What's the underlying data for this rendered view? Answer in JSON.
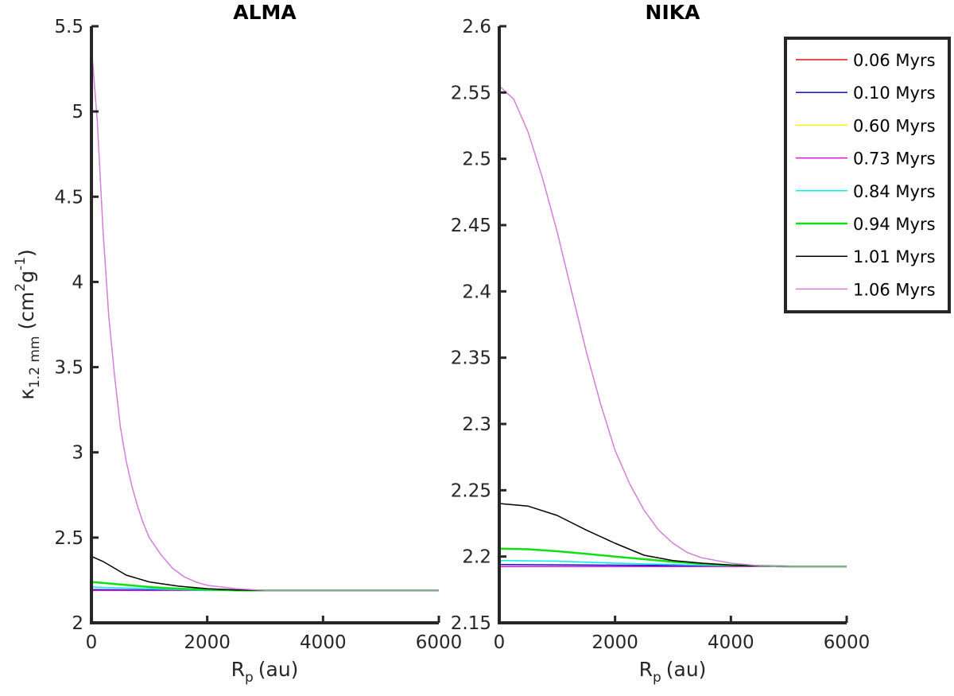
{
  "chart_data": [
    {
      "type": "line",
      "title": "ALMA",
      "xlabel": "R_p (au)",
      "xlabel_main": "R",
      "xlabel_sub": "p",
      "xlabel_unit": "(au)",
      "ylabel": "κ_1.2 mm (cm^2 g^-1)",
      "ylabel_main": "κ",
      "ylabel_sub": "1.2 mm",
      "ylabel_unit_open": "(cm",
      "ylabel_sup1": "2",
      "ylabel_unit_mid": "g",
      "ylabel_sup2": "-1",
      "ylabel_unit_close": ")",
      "xlim": [
        0,
        6000
      ],
      "ylim": [
        2,
        5.5
      ],
      "xticks": [
        0,
        2000,
        4000,
        6000
      ],
      "xtick_labels": [
        "0",
        "2000",
        "4000",
        "6000"
      ],
      "yticks": [
        2,
        2.5,
        3,
        3.5,
        4,
        4.5,
        5,
        5.5
      ],
      "ytick_labels": [
        "2",
        "2.5",
        "3",
        "3.5",
        "4",
        "4.5",
        "5",
        "5.5"
      ],
      "series": [
        {
          "name": "0.06 Myrs",
          "color": "#e01010",
          "width": 1.5,
          "x": [
            0,
            6000
          ],
          "y": [
            2.19,
            2.19
          ]
        },
        {
          "name": "0.10 Myrs",
          "color": "#1010d0",
          "width": 1.5,
          "x": [
            0,
            1000,
            2000,
            6000
          ],
          "y": [
            2.195,
            2.193,
            2.19,
            2.19
          ]
        },
        {
          "name": "0.60 Myrs",
          "color": "#ffee00",
          "width": 1.5,
          "x": [
            0,
            6000
          ],
          "y": [
            2.19,
            2.19
          ]
        },
        {
          "name": "0.73 Myrs",
          "color": "#e010e0",
          "width": 1.5,
          "x": [
            0,
            6000
          ],
          "y": [
            2.19,
            2.19
          ]
        },
        {
          "name": "0.84 Myrs",
          "color": "#00eeee",
          "width": 1.5,
          "x": [
            0,
            500,
            1000,
            1500,
            2000,
            6000
          ],
          "y": [
            2.21,
            2.205,
            2.2,
            2.195,
            2.19,
            2.19
          ]
        },
        {
          "name": "0.94 Myrs",
          "color": "#10e010",
          "width": 2.5,
          "x": [
            0,
            500,
            1000,
            1500,
            2000,
            2500,
            6000
          ],
          "y": [
            2.24,
            2.225,
            2.21,
            2.2,
            2.195,
            2.19,
            2.19
          ]
        },
        {
          "name": "1.01 Myrs",
          "color": "#000000",
          "width": 1.5,
          "x": [
            0,
            200,
            400,
            600,
            800,
            1000,
            1500,
            2000,
            2500,
            3000,
            6000
          ],
          "y": [
            2.39,
            2.36,
            2.32,
            2.28,
            2.26,
            2.24,
            2.215,
            2.2,
            2.193,
            2.19,
            2.19
          ]
        },
        {
          "name": "1.06 Myrs",
          "color": "#d27fd8",
          "width": 1.5,
          "x": [
            0,
            100,
            200,
            300,
            400,
            500,
            600,
            700,
            800,
            900,
            1000,
            1200,
            1400,
            1600,
            1800,
            2000,
            2500,
            3000,
            6000
          ],
          "y": [
            5.38,
            4.95,
            4.3,
            3.8,
            3.45,
            3.15,
            2.95,
            2.8,
            2.68,
            2.58,
            2.5,
            2.4,
            2.32,
            2.27,
            2.24,
            2.22,
            2.2,
            2.19,
            2.19
          ]
        }
      ]
    },
    {
      "type": "line",
      "title": "NIKA",
      "xlabel": "R_p (au)",
      "xlabel_main": "R",
      "xlabel_sub": "p",
      "xlabel_unit": "(au)",
      "xlim": [
        0,
        6000
      ],
      "ylim": [
        2.15,
        2.6
      ],
      "xticks": [
        0,
        2000,
        4000,
        6000
      ],
      "xtick_labels": [
        "0",
        "2000",
        "4000",
        "6000"
      ],
      "yticks": [
        2.15,
        2.2,
        2.25,
        2.3,
        2.35,
        2.4,
        2.45,
        2.5,
        2.55,
        2.6
      ],
      "ytick_labels": [
        "2.15",
        "2.2",
        "2.25",
        "2.3",
        "2.35",
        "2.4",
        "2.45",
        "2.5",
        "2.55",
        "2.6"
      ],
      "series": [
        {
          "name": "0.06 Myrs",
          "color": "#e01010",
          "width": 1.5,
          "x": [
            0,
            6000
          ],
          "y": [
            2.1925,
            2.1925
          ]
        },
        {
          "name": "0.10 Myrs",
          "color": "#1010d0",
          "width": 1.5,
          "x": [
            0,
            2000,
            4000,
            6000
          ],
          "y": [
            2.194,
            2.1935,
            2.193,
            2.1925
          ]
        },
        {
          "name": "0.60 Myrs",
          "color": "#ffee00",
          "width": 1.5,
          "x": [
            0,
            6000
          ],
          "y": [
            2.1925,
            2.1925
          ]
        },
        {
          "name": "0.73 Myrs",
          "color": "#e010e0",
          "width": 1.5,
          "x": [
            0,
            6000
          ],
          "y": [
            2.1925,
            2.1925
          ]
        },
        {
          "name": "0.84 Myrs",
          "color": "#00eeee",
          "width": 1.5,
          "x": [
            0,
            1000,
            2000,
            3000,
            4000,
            6000
          ],
          "y": [
            2.197,
            2.1965,
            2.195,
            2.194,
            2.193,
            2.1925
          ]
        },
        {
          "name": "0.94 Myrs",
          "color": "#10e010",
          "width": 2.5,
          "x": [
            0,
            500,
            1000,
            1500,
            2000,
            2500,
            3000,
            3500,
            4000,
            5000,
            6000
          ],
          "y": [
            2.206,
            2.2055,
            2.204,
            2.202,
            2.2,
            2.198,
            2.196,
            2.1945,
            2.1935,
            2.1925,
            2.1925
          ]
        },
        {
          "name": "1.01 Myrs",
          "color": "#000000",
          "width": 1.5,
          "x": [
            0,
            500,
            1000,
            1500,
            2000,
            2500,
            3000,
            3500,
            4000,
            4500,
            5000,
            6000
          ],
          "y": [
            2.24,
            2.238,
            2.231,
            2.22,
            2.21,
            2.201,
            2.197,
            2.195,
            2.1935,
            2.193,
            2.1925,
            2.1925
          ]
        },
        {
          "name": "1.06 Myrs",
          "color": "#d27fd8",
          "width": 1.5,
          "x": [
            0,
            250,
            500,
            750,
            1000,
            1250,
            1500,
            1750,
            2000,
            2250,
            2500,
            2750,
            3000,
            3250,
            3500,
            3750,
            4000,
            4500,
            5000,
            6000
          ],
          "y": [
            2.555,
            2.545,
            2.52,
            2.485,
            2.445,
            2.4,
            2.355,
            2.315,
            2.28,
            2.255,
            2.235,
            2.22,
            2.21,
            2.203,
            2.199,
            2.197,
            2.195,
            2.193,
            2.1925,
            2.1925
          ]
        }
      ]
    }
  ],
  "legend": {
    "placement": "top-right",
    "entries": [
      "0.06 Myrs",
      "0.10 Myrs",
      "0.60 Myrs",
      "0.73 Myrs",
      "0.84 Myrs",
      "0.94 Myrs",
      "1.01 Myrs",
      "1.06 Myrs"
    ]
  }
}
